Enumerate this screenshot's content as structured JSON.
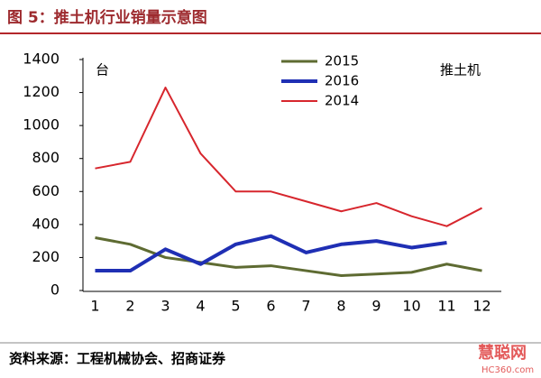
{
  "header": {
    "title": "图 5：推土机行业销量示意图"
  },
  "chart_data": {
    "type": "line",
    "y_unit": "台",
    "annotation": "推土机",
    "categories": [
      "1",
      "2",
      "3",
      "4",
      "5",
      "6",
      "7",
      "8",
      "9",
      "10",
      "11",
      "12"
    ],
    "series": [
      {
        "name": "2015",
        "color": "#5e6b32",
        "width": 3,
        "values": [
          320,
          280,
          200,
          170,
          140,
          150,
          120,
          90,
          100,
          110,
          160,
          120
        ]
      },
      {
        "name": "2016",
        "color": "#1f2fb4",
        "width": 4,
        "values": [
          120,
          120,
          250,
          160,
          280,
          330,
          230,
          280,
          300,
          260,
          290,
          null
        ]
      },
      {
        "name": "2014",
        "color": "#d7262d",
        "width": 2,
        "values": [
          740,
          780,
          1230,
          830,
          600,
          600,
          540,
          480,
          530,
          450,
          390,
          500
        ]
      }
    ],
    "ylim": [
      0,
      1400
    ],
    "yticks": [
      0,
      200,
      400,
      600,
      800,
      1000,
      1200,
      1400
    ],
    "grid": false
  },
  "footer": {
    "source": "资料来源：工程机械协会、招商证券",
    "watermark": "慧聪网",
    "watermark_url": "HC360.com"
  }
}
